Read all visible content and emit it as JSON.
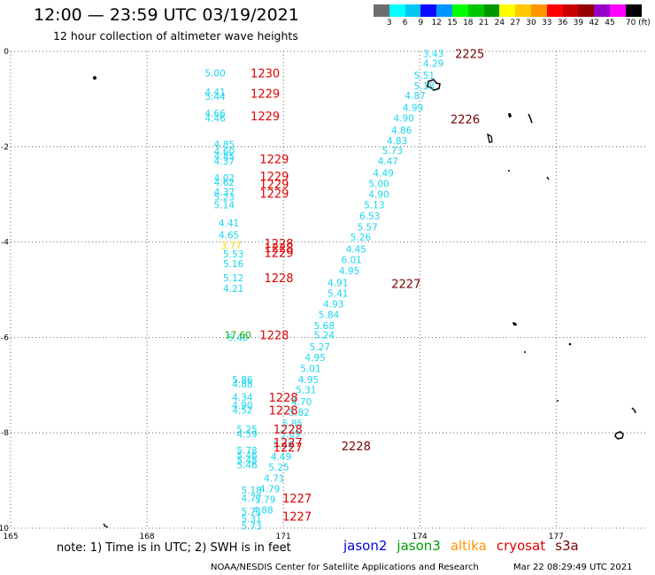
{
  "header": {
    "title": "12:00 — 23:59 UTC 03/19/2021",
    "subtitle": "12 hour collection of altimeter wave heights"
  },
  "legend": {
    "items": [
      {
        "label": "",
        "color": "#6e6e6e"
      },
      {
        "label": "3",
        "color": "#00ffff"
      },
      {
        "label": "6",
        "color": "#00c8f0"
      },
      {
        "label": "9",
        "color": "#0a0aff"
      },
      {
        "label": "12",
        "color": "#0096ff"
      },
      {
        "label": "15",
        "color": "#00ff00"
      },
      {
        "label": "18",
        "color": "#00c800"
      },
      {
        "label": "21",
        "color": "#009600"
      },
      {
        "label": "24",
        "color": "#ffff00"
      },
      {
        "label": "27",
        "color": "#ffc800"
      },
      {
        "label": "30",
        "color": "#ff9600"
      },
      {
        "label": "33",
        "color": "#ff0000"
      },
      {
        "label": "36",
        "color": "#c80000"
      },
      {
        "label": "39",
        "color": "#960000"
      },
      {
        "label": "42",
        "color": "#9600c8"
      },
      {
        "label": "45",
        "color": "#ff00ff"
      },
      {
        "label": "70 (ft)",
        "color": "#000000"
      }
    ]
  },
  "axes": {
    "x_ticks": [
      "165",
      "168",
      "171",
      "174",
      "177"
    ],
    "y_ticks": [
      "0",
      "-2",
      "-4",
      "-6",
      "-8",
      "-10"
    ],
    "lon_range": [
      165,
      179
    ],
    "lat_range": [
      -10,
      0
    ],
    "grid": "dotted"
  },
  "colors": {
    "wave": "#19d6ef",
    "time_west": "#e00000",
    "time_east": "#7a0000",
    "land": "#000000"
  },
  "wave_labels": [
    {
      "text": "3.43",
      "lon": 174.3,
      "lat": -0.05
    },
    {
      "text": "4.29",
      "lon": 174.3,
      "lat": -0.25
    },
    {
      "text": "5.51",
      "lon": 174.1,
      "lat": -0.5
    },
    {
      "text": "5.18",
      "lon": 174.1,
      "lat": -0.72
    },
    {
      "text": "4.87",
      "lon": 173.9,
      "lat": -0.93
    },
    {
      "text": "4.99",
      "lon": 173.85,
      "lat": -1.18
    },
    {
      "text": "4.90",
      "lon": 173.65,
      "lat": -1.4
    },
    {
      "text": "4.86",
      "lon": 173.6,
      "lat": -1.65
    },
    {
      "text": "4.83",
      "lon": 173.5,
      "lat": -1.87
    },
    {
      "text": "5.73",
      "lon": 173.4,
      "lat": -2.08
    },
    {
      "text": "4.47",
      "lon": 173.3,
      "lat": -2.3
    },
    {
      "text": "4.49",
      "lon": 173.2,
      "lat": -2.55
    },
    {
      "text": "5.00",
      "lon": 173.1,
      "lat": -2.77
    },
    {
      "text": "4.90",
      "lon": 173.1,
      "lat": -3.0
    },
    {
      "text": "5.13",
      "lon": 173.0,
      "lat": -3.22
    },
    {
      "text": "6.53",
      "lon": 172.9,
      "lat": -3.45
    },
    {
      "text": "5.57",
      "lon": 172.85,
      "lat": -3.68
    },
    {
      "text": "5.26",
      "lon": 172.7,
      "lat": -3.9
    },
    {
      "text": "4.45",
      "lon": 172.6,
      "lat": -4.15
    },
    {
      "text": "6.01",
      "lon": 172.5,
      "lat": -4.37
    },
    {
      "text": "4.95",
      "lon": 172.45,
      "lat": -4.6
    },
    {
      "text": "4.91",
      "lon": 172.2,
      "lat": -4.85
    },
    {
      "text": "5.41",
      "lon": 172.2,
      "lat": -5.07
    },
    {
      "text": "4.93",
      "lon": 172.1,
      "lat": -5.3
    },
    {
      "text": "5.84",
      "lon": 172.0,
      "lat": -5.52
    },
    {
      "text": "5.68",
      "lon": 171.9,
      "lat": -5.75
    },
    {
      "text": "5.24",
      "lon": 171.9,
      "lat": -5.95
    },
    {
      "text": "5.27",
      "lon": 171.8,
      "lat": -6.2
    },
    {
      "text": "4.95",
      "lon": 171.7,
      "lat": -6.42
    },
    {
      "text": "5.01",
      "lon": 171.6,
      "lat": -6.65
    },
    {
      "text": "4.95",
      "lon": 171.55,
      "lat": -6.88
    },
    {
      "text": "5.31",
      "lon": 171.5,
      "lat": -7.1
    },
    {
      "text": "4.70",
      "lon": 171.4,
      "lat": -7.35
    },
    {
      "text": "5.82",
      "lon": 171.35,
      "lat": -7.57
    },
    {
      "text": "5.85",
      "lon": 171.2,
      "lat": -7.8
    },
    {
      "text": "5.09",
      "lon": 171.15,
      "lat": -8.02
    },
    {
      "text": "5.46",
      "lon": 171.0,
      "lat": -8.25
    },
    {
      "text": "4.49",
      "lon": 170.95,
      "lat": -8.5
    },
    {
      "text": "5.25",
      "lon": 170.9,
      "lat": -8.72
    },
    {
      "text": "4.71",
      "lon": 170.8,
      "lat": -8.95
    },
    {
      "text": "4.79",
      "lon": 170.7,
      "lat": -9.17
    },
    {
      "text": "5.79",
      "lon": 170.6,
      "lat": -9.4
    },
    {
      "text": "4.88",
      "lon": 170.55,
      "lat": -9.62
    },
    {
      "text": "5.00",
      "lon": 169.5,
      "lat": -0.45
    },
    {
      "text": "4.41",
      "lon": 169.5,
      "lat": -0.85
    },
    {
      "text": "5.44",
      "lon": 169.5,
      "lat": -0.95
    },
    {
      "text": "4.66",
      "lon": 169.5,
      "lat": -1.3
    },
    {
      "text": "4.46",
      "lon": 169.5,
      "lat": -1.4
    },
    {
      "text": "4.85",
      "lon": 169.7,
      "lat": -1.95
    },
    {
      "text": "4.60",
      "lon": 169.7,
      "lat": -2.1
    },
    {
      "text": "4.85",
      "lon": 169.7,
      "lat": -2.2
    },
    {
      "text": "4.37",
      "lon": 169.7,
      "lat": -2.3
    },
    {
      "text": "4.02",
      "lon": 169.7,
      "lat": -2.65
    },
    {
      "text": "4.62",
      "lon": 169.7,
      "lat": -2.75
    },
    {
      "text": "4.37",
      "lon": 169.7,
      "lat": -2.95
    },
    {
      "text": "5.23",
      "lon": 169.7,
      "lat": -3.05
    },
    {
      "text": "5.14",
      "lon": 169.7,
      "lat": -3.22
    },
    {
      "text": "4.41",
      "lon": 169.8,
      "lat": -3.6
    },
    {
      "text": "4.65",
      "lon": 169.8,
      "lat": -3.85
    },
    {
      "text": "5.53",
      "lon": 169.9,
      "lat": -4.25
    },
    {
      "text": "5.16",
      "lon": 169.9,
      "lat": -4.45
    },
    {
      "text": "5.12",
      "lon": 169.9,
      "lat": -4.75
    },
    {
      "text": "4.21",
      "lon": 169.9,
      "lat": -4.97
    },
    {
      "text": "5.40",
      "lon": 170.0,
      "lat": -6.0
    },
    {
      "text": "5.86",
      "lon": 170.1,
      "lat": -6.88
    },
    {
      "text": "4.88",
      "lon": 170.1,
      "lat": -6.98
    },
    {
      "text": "4.34",
      "lon": 170.1,
      "lat": -7.25
    },
    {
      "text": "4.90",
      "lon": 170.1,
      "lat": -7.42
    },
    {
      "text": "4.52",
      "lon": 170.1,
      "lat": -7.52
    },
    {
      "text": "5.25",
      "lon": 170.2,
      "lat": -7.92
    },
    {
      "text": "4.59",
      "lon": 170.2,
      "lat": -8.02
    },
    {
      "text": "5.78",
      "lon": 170.2,
      "lat": -8.37
    },
    {
      "text": "5.46",
      "lon": 170.2,
      "lat": -8.47
    },
    {
      "text": "5.48",
      "lon": 170.2,
      "lat": -8.57
    },
    {
      "text": "5.46",
      "lon": 170.2,
      "lat": -8.67
    },
    {
      "text": "5.18",
      "lon": 170.3,
      "lat": -9.2
    },
    {
      "text": "4.77",
      "lon": 170.3,
      "lat": -9.37
    },
    {
      "text": "5.71",
      "lon": 170.3,
      "lat": -9.65
    },
    {
      "text": "5.31",
      "lon": 170.3,
      "lat": -9.8
    },
    {
      "text": "5.73",
      "lon": 170.3,
      "lat": -9.95
    }
  ],
  "special_labels": [
    {
      "text": "3.77",
      "lon": 169.85,
      "lat": -4.07,
      "color": "#ffd200"
    },
    {
      "text": "17.60",
      "lon": 170.0,
      "lat": -5.95,
      "color": "#18b000"
    }
  ],
  "time_labels": [
    {
      "text": "2225",
      "lon": 175.1,
      "lat": -0.05,
      "color": "#7a0000"
    },
    {
      "text": "2226",
      "lon": 175.0,
      "lat": -1.42,
      "color": "#7a0000"
    },
    {
      "text": "2227",
      "lon": 173.7,
      "lat": -4.87,
      "color": "#7a0000"
    },
    {
      "text": "2228",
      "lon": 172.6,
      "lat": -8.27,
      "color": "#7a0000"
    },
    {
      "text": "1230",
      "lon": 170.6,
      "lat": -0.45,
      "color": "#e00000"
    },
    {
      "text": "1229",
      "lon": 170.6,
      "lat": -0.88,
      "color": "#e00000"
    },
    {
      "text": "1229",
      "lon": 170.6,
      "lat": -1.35,
      "color": "#e00000"
    },
    {
      "text": "1229",
      "lon": 170.8,
      "lat": -2.25,
      "color": "#e00000"
    },
    {
      "text": "1229",
      "lon": 170.8,
      "lat": -2.62,
      "color": "#e00000"
    },
    {
      "text": "1229",
      "lon": 170.8,
      "lat": -2.78,
      "color": "#e00000"
    },
    {
      "text": "1229",
      "lon": 170.8,
      "lat": -2.98,
      "color": "#e00000"
    },
    {
      "text": "1228",
      "lon": 170.9,
      "lat": -4.03,
      "color": "#e00000"
    },
    {
      "text": "1228",
      "lon": 170.9,
      "lat": -4.12,
      "color": "#e00000"
    },
    {
      "text": "1229",
      "lon": 170.9,
      "lat": -4.22,
      "color": "#e00000"
    },
    {
      "text": "1228",
      "lon": 170.9,
      "lat": -4.75,
      "color": "#e00000"
    },
    {
      "text": "1228",
      "lon": 170.8,
      "lat": -5.95,
      "color": "#e00000"
    },
    {
      "text": "1228",
      "lon": 171.0,
      "lat": -7.25,
      "color": "#e00000"
    },
    {
      "text": "1228",
      "lon": 171.0,
      "lat": -7.52,
      "color": "#e00000"
    },
    {
      "text": "1228",
      "lon": 171.1,
      "lat": -7.92,
      "color": "#e00000"
    },
    {
      "text": "1227",
      "lon": 171.1,
      "lat": -8.2,
      "color": "#e00000"
    },
    {
      "text": "1227",
      "lon": 171.1,
      "lat": -8.3,
      "color": "#e00000"
    },
    {
      "text": "1227",
      "lon": 171.3,
      "lat": -9.37,
      "color": "#e00000"
    },
    {
      "text": "1227",
      "lon": 171.3,
      "lat": -9.75,
      "color": "#e00000"
    }
  ],
  "footer": {
    "note": "note:  1) Time is in UTC;  2) SWH is in feet",
    "satellites": [
      {
        "name": "jason2",
        "color": "#0000dd"
      },
      {
        "name": "jason3",
        "color": "#00a000"
      },
      {
        "name": "altika",
        "color": "#ff9600"
      },
      {
        "name": "cryosat",
        "color": "#e00000"
      },
      {
        "name": "s3a",
        "color": "#7a0000"
      }
    ],
    "credit": "NOAA/NESDIS Center for Satellite Applications and Research",
    "timestamp": "Mar 22 08:29:49 UTC 2021"
  }
}
